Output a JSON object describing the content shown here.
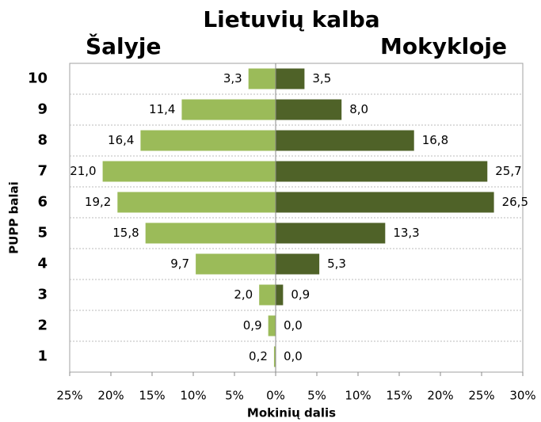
{
  "chart_data": {
    "type": "diverging-bar",
    "title": "Lietuvių kalba",
    "xlabel": "Mokinių dalis",
    "ylabel": "PUPP balai",
    "categories": [
      "10",
      "9",
      "8",
      "7",
      "6",
      "5",
      "4",
      "3",
      "2",
      "1"
    ],
    "series": [
      {
        "name": "Šalyje",
        "color": "#9bbb59",
        "values": [
          -3.3,
          -11.4,
          -16.4,
          -21.0,
          -19.2,
          -15.8,
          -9.7,
          -2.0,
          -0.9,
          -0.2
        ],
        "value_labels": [
          "3,3",
          "11,4",
          "16,4",
          "21,0",
          "19,2",
          "15,8",
          "9,7",
          "2,0",
          "0,9",
          "0,2"
        ]
      },
      {
        "name": "Mokykloje",
        "color": "#4f6228",
        "values": [
          3.5,
          8.0,
          16.8,
          25.7,
          26.5,
          13.3,
          5.3,
          0.9,
          0.0,
          0.0
        ],
        "value_labels": [
          "3,5",
          "8,0",
          "16,8",
          "25,7",
          "26,5",
          "13,3",
          "5,3",
          "0,9",
          "0,0",
          "0,0"
        ]
      }
    ],
    "xlim": [
      -25,
      30
    ],
    "xticks": [
      {
        "value": -25,
        "label": "25%"
      },
      {
        "value": -20,
        "label": "20%"
      },
      {
        "value": -15,
        "label": "15%"
      },
      {
        "value": -10,
        "label": "10%"
      },
      {
        "value": -5,
        "label": "5%"
      },
      {
        "value": 0,
        "label": "0%"
      },
      {
        "value": 5,
        "label": "5%"
      },
      {
        "value": 10,
        "label": "10%"
      },
      {
        "value": 15,
        "label": "15%"
      },
      {
        "value": 20,
        "label": "20%"
      },
      {
        "value": 25,
        "label": "25%"
      },
      {
        "value": 30,
        "label": "30%"
      }
    ],
    "grid": true
  }
}
